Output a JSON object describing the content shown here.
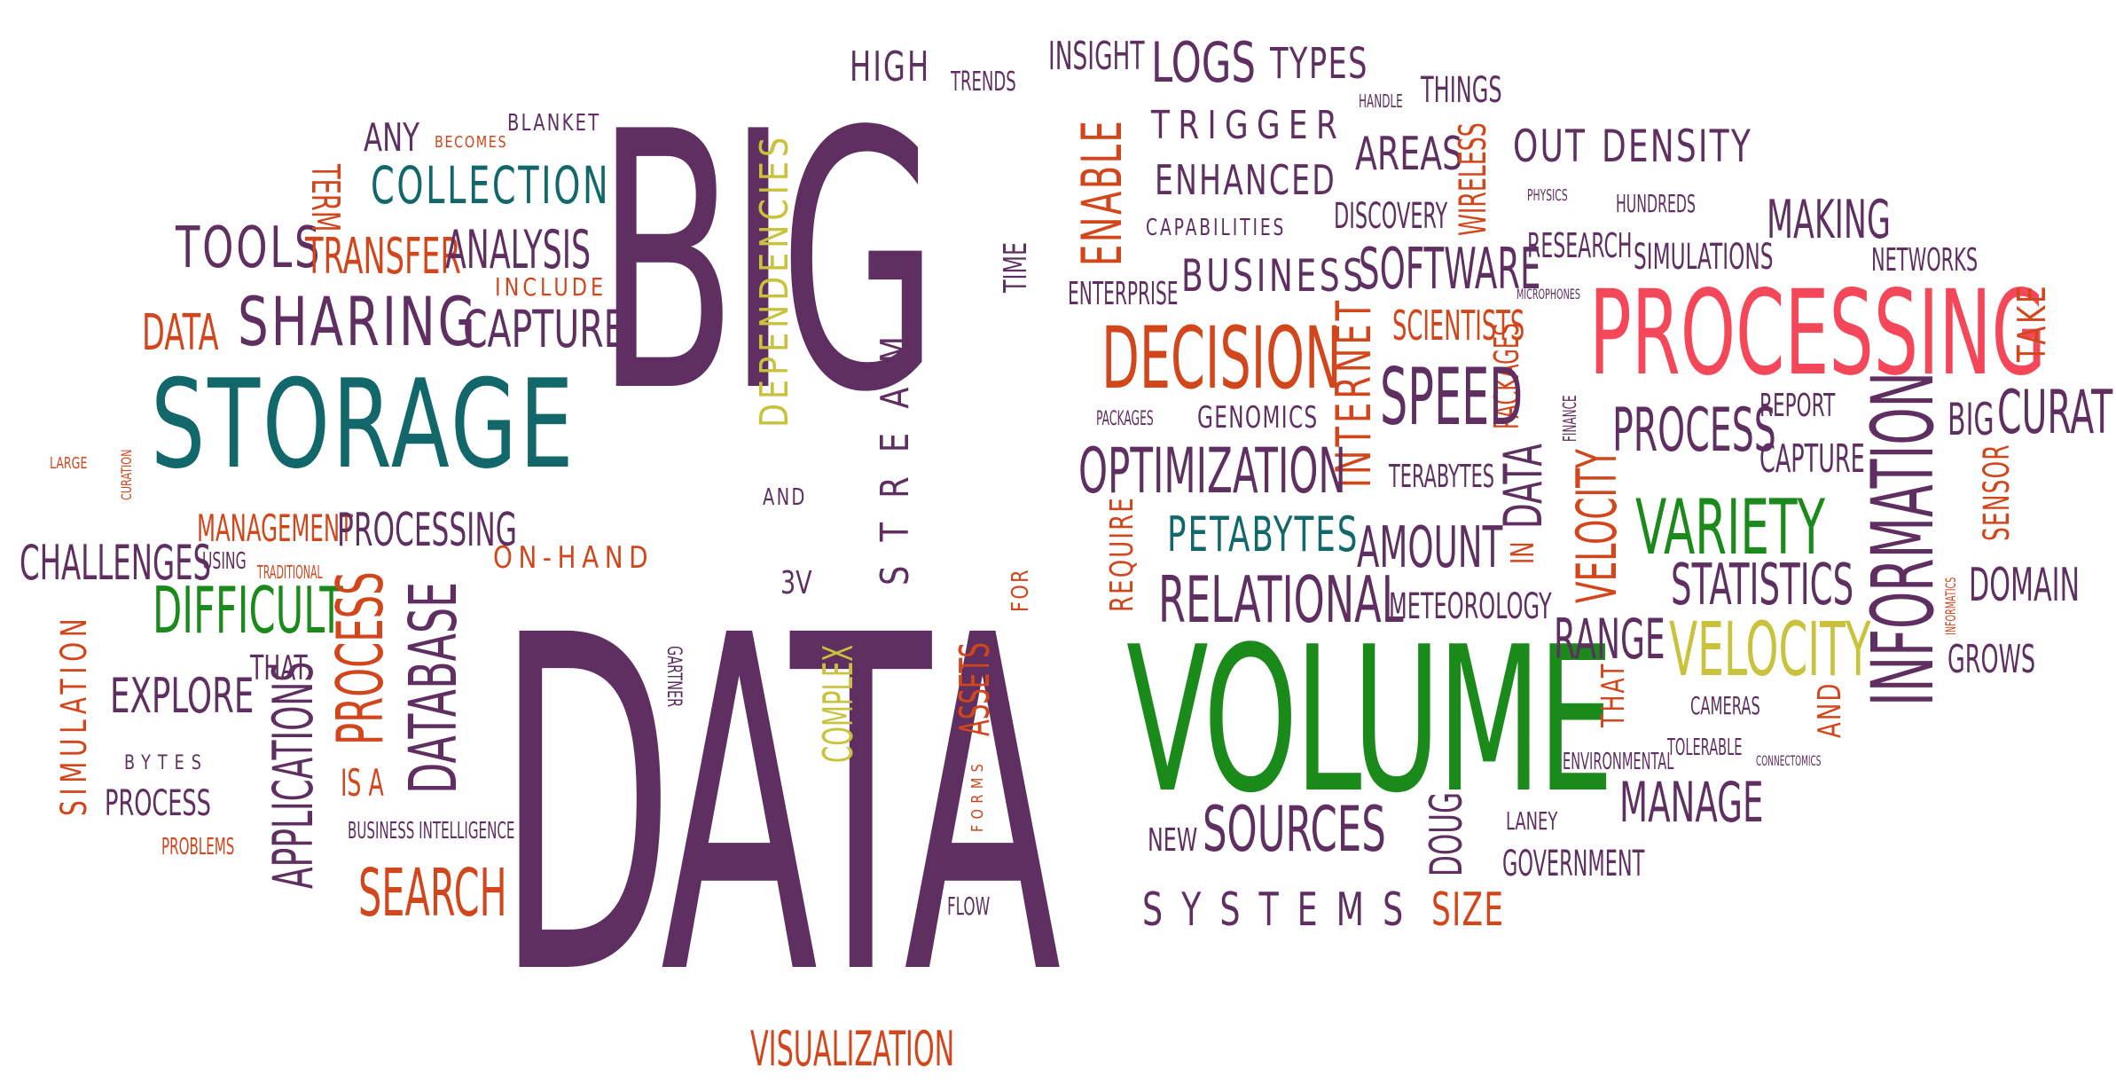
{
  "palette": {
    "purple": "#5e2f60",
    "teal": "#12676a",
    "orange": "#d2461c",
    "green": "#1a8a1a",
    "olive": "#c9c23c",
    "pink": "#f4485a"
  },
  "words": [
    {
      "text": "BIG",
      "color": "purple",
      "rot": 0
    },
    {
      "text": "DATA",
      "color": "purple",
      "rot": 0
    },
    {
      "text": "VOLUME",
      "color": "green",
      "rot": 0
    },
    {
      "text": "PROCESSING",
      "color": "pink",
      "rot": 0
    },
    {
      "text": "STORAGE",
      "color": "teal",
      "rot": 0
    },
    {
      "text": "SHARING",
      "color": "purple",
      "rot": 0
    },
    {
      "text": "CAPTURE",
      "color": "purple",
      "rot": 0
    },
    {
      "text": "TOOLS",
      "color": "purple",
      "rot": 0
    },
    {
      "text": "TRANSFER",
      "color": "orange",
      "rot": 0
    },
    {
      "text": "ANALYSIS",
      "color": "purple",
      "rot": 0
    },
    {
      "text": "COLLECTION",
      "color": "teal",
      "rot": 0
    },
    {
      "text": "ANY",
      "color": "purple",
      "rot": 0
    },
    {
      "text": "BECOMES",
      "color": "orange",
      "rot": 0
    },
    {
      "text": "BLANKET",
      "color": "purple",
      "rot": 0
    },
    {
      "text": "INCLUDE",
      "color": "orange",
      "rot": 0
    },
    {
      "text": "TERM",
      "color": "orange",
      "rot": 90
    },
    {
      "text": "DATA",
      "color": "orange",
      "rot": 0
    },
    {
      "text": "LARGE",
      "color": "orange",
      "rot": 0
    },
    {
      "text": "CURATION",
      "color": "orange",
      "rot": -90
    },
    {
      "text": "MANAGEMENT",
      "color": "orange",
      "rot": 0
    },
    {
      "text": "PROCESSING",
      "color": "purple",
      "rot": 0
    },
    {
      "text": "CHALLENGES",
      "color": "purple",
      "rot": 0
    },
    {
      "text": "USING",
      "color": "purple",
      "rot": 0
    },
    {
      "text": "TRADITIONAL",
      "color": "orange",
      "rot": 0
    },
    {
      "text": "DIFFICULT",
      "color": "green",
      "rot": 0
    },
    {
      "text": "ON-HAND",
      "color": "orange",
      "rot": 0
    },
    {
      "text": "SIMULATION",
      "color": "orange",
      "rot": -90
    },
    {
      "text": "EXPLORE",
      "color": "purple",
      "rot": 0
    },
    {
      "text": "THAT",
      "color": "purple",
      "rot": 0
    },
    {
      "text": "BYTES",
      "color": "purple",
      "rot": 0
    },
    {
      "text": "PROCESS",
      "color": "purple",
      "rot": 0
    },
    {
      "text": "PROBLEMS",
      "color": "orange",
      "rot": 0
    },
    {
      "text": "APPLICATIONS",
      "color": "purple",
      "rot": -90
    },
    {
      "text": "PROCESS",
      "color": "orange",
      "rot": -90
    },
    {
      "text": "DATABASE",
      "color": "purple",
      "rot": -90
    },
    {
      "text": "IS A",
      "color": "orange",
      "rot": 0
    },
    {
      "text": "BUSINESS INTELLIGENCE",
      "color": "purple",
      "rot": 0
    },
    {
      "text": "SEARCH",
      "color": "orange",
      "rot": 0
    },
    {
      "text": "VISUALIZATION",
      "color": "orange",
      "rot": 0
    },
    {
      "text": "DEPENDENCIES",
      "color": "olive",
      "rot": -90
    },
    {
      "text": "AND",
      "color": "purple",
      "rot": 0
    },
    {
      "text": "HIGH",
      "color": "purple",
      "rot": 0
    },
    {
      "text": "TRENDS",
      "color": "purple",
      "rot": 0
    },
    {
      "text": "INSIGHT",
      "color": "purple",
      "rot": 0
    },
    {
      "text": "STREAM",
      "color": "purple",
      "rot": -90
    },
    {
      "text": "TIME",
      "color": "purple",
      "rot": -90
    },
    {
      "text": "3V",
      "color": "purple",
      "rot": 0
    },
    {
      "text": "GARTNER",
      "color": "purple",
      "rot": 90
    },
    {
      "text": "COMPLEX",
      "color": "olive",
      "rot": -90
    },
    {
      "text": "ASSETS",
      "color": "orange",
      "rot": -90
    },
    {
      "text": "FORMS",
      "color": "orange",
      "rot": -90
    },
    {
      "text": "FOR",
      "color": "orange",
      "rot": -90
    },
    {
      "text": "FLOW",
      "color": "purple",
      "rot": 0
    },
    {
      "text": "LOGS",
      "color": "purple",
      "rot": 0
    },
    {
      "text": "TYPES",
      "color": "purple",
      "rot": 0
    },
    {
      "text": "HANDLE",
      "color": "purple",
      "rot": 0
    },
    {
      "text": "THINGS",
      "color": "purple",
      "rot": 0
    },
    {
      "text": "TRIGGER",
      "color": "purple",
      "rot": 0
    },
    {
      "text": "ENABLE",
      "color": "orange",
      "rot": -90
    },
    {
      "text": "ENHANCED",
      "color": "purple",
      "rot": 0
    },
    {
      "text": "AREAS",
      "color": "purple",
      "rot": 0
    },
    {
      "text": "WIRELESS",
      "color": "orange",
      "rot": -90
    },
    {
      "text": "OUT",
      "color": "purple",
      "rot": 0
    },
    {
      "text": "DENSITY",
      "color": "purple",
      "rot": 0
    },
    {
      "text": "CAPABILITIES",
      "color": "purple",
      "rot": 0
    },
    {
      "text": "DISCOVERY",
      "color": "purple",
      "rot": 0
    },
    {
      "text": "PHYSICS",
      "color": "purple",
      "rot": 0
    },
    {
      "text": "HUNDREDS",
      "color": "purple",
      "rot": 0
    },
    {
      "text": "MAKING",
      "color": "purple",
      "rot": 0
    },
    {
      "text": "RESEARCH",
      "color": "purple",
      "rot": 0
    },
    {
      "text": "SIMULATIONS",
      "color": "purple",
      "rot": 0
    },
    {
      "text": "NETWORKS",
      "color": "purple",
      "rot": 0
    },
    {
      "text": "ENTERPRISE",
      "color": "purple",
      "rot": 0
    },
    {
      "text": "BUSINESS",
      "color": "purple",
      "rot": 0
    },
    {
      "text": "SOFTWARE",
      "color": "purple",
      "rot": 0
    },
    {
      "text": "MICROPHONES",
      "color": "purple",
      "rot": 0
    },
    {
      "text": "TAKE",
      "color": "orange",
      "rot": -90
    },
    {
      "text": "DECISION",
      "color": "orange",
      "rot": 0
    },
    {
      "text": "INTERNET",
      "color": "orange",
      "rot": -90
    },
    {
      "text": "SCIENTISTS",
      "color": "orange",
      "rot": 0
    },
    {
      "text": "PACKAGES",
      "color": "orange",
      "rot": -90
    },
    {
      "text": "SPEED",
      "color": "purple",
      "rot": 0
    },
    {
      "text": "FINANCE",
      "color": "purple",
      "rot": -90
    },
    {
      "text": "PROCESS",
      "color": "purple",
      "rot": 0
    },
    {
      "text": "REPORT",
      "color": "purple",
      "rot": 0
    },
    {
      "text": "BIG",
      "color": "purple",
      "rot": 0
    },
    {
      "text": "CURATE",
      "color": "purple",
      "rot": 0
    },
    {
      "text": "PACKAGES",
      "color": "purple",
      "rot": 0
    },
    {
      "text": "GENOMICS",
      "color": "purple",
      "rot": 0
    },
    {
      "text": "OPTIMIZATION",
      "color": "purple",
      "rot": 0
    },
    {
      "text": "TERABYTES",
      "color": "purple",
      "rot": 0
    },
    {
      "text": "DATA",
      "color": "purple",
      "rot": -90
    },
    {
      "text": "IN",
      "color": "orange",
      "rot": -90
    },
    {
      "text": "VELOCITY",
      "color": "orange",
      "rot": -90
    },
    {
      "text": "CAPTURE",
      "color": "purple",
      "rot": 0
    },
    {
      "text": "INFORMATION",
      "color": "purple",
      "rot": -90
    },
    {
      "text": "SENSOR",
      "color": "orange",
      "rot": -90
    },
    {
      "text": "REQUIRE",
      "color": "orange",
      "rot": -90
    },
    {
      "text": "PETABYTES",
      "color": "teal",
      "rot": 0
    },
    {
      "text": "AMOUNT",
      "color": "purple",
      "rot": 0
    },
    {
      "text": "VARIETY",
      "color": "green",
      "rot": 0
    },
    {
      "text": "STATISTICS",
      "color": "purple",
      "rot": 0
    },
    {
      "text": "DOMAIN",
      "color": "purple",
      "rot": 0
    },
    {
      "text": "INFORMATICS",
      "color": "orange",
      "rot": -90
    },
    {
      "text": "RELATIONAL",
      "color": "purple",
      "rot": 0
    },
    {
      "text": "METEOROLOGY",
      "color": "purple",
      "rot": 0
    },
    {
      "text": "RANGE",
      "color": "purple",
      "rot": 0
    },
    {
      "text": "VELOCITY",
      "color": "olive",
      "rot": 0
    },
    {
      "text": "GROWS",
      "color": "purple",
      "rot": 0
    },
    {
      "text": "THAT",
      "color": "orange",
      "rot": -90
    },
    {
      "text": "CAMERAS",
      "color": "purple",
      "rot": 0
    },
    {
      "text": "AND",
      "color": "orange",
      "rot": -90
    },
    {
      "text": "ENVIRONMENTAL",
      "color": "purple",
      "rot": 0
    },
    {
      "text": "TOLERABLE",
      "color": "purple",
      "rot": 0
    },
    {
      "text": "CONNECTOMICS",
      "color": "purple",
      "rot": 0
    },
    {
      "text": "MANAGE",
      "color": "purple",
      "rot": 0
    },
    {
      "text": "NEW",
      "color": "purple",
      "rot": 0
    },
    {
      "text": "SOURCES",
      "color": "purple",
      "rot": 0
    },
    {
      "text": "DOUG",
      "color": "purple",
      "rot": -90
    },
    {
      "text": "LANEY",
      "color": "purple",
      "rot": 0
    },
    {
      "text": "GOVERNMENT",
      "color": "purple",
      "rot": 0
    },
    {
      "text": "SYSTEMS",
      "color": "purple",
      "rot": 0
    },
    {
      "text": "SIZE",
      "color": "orange",
      "rot": 0
    }
  ]
}
